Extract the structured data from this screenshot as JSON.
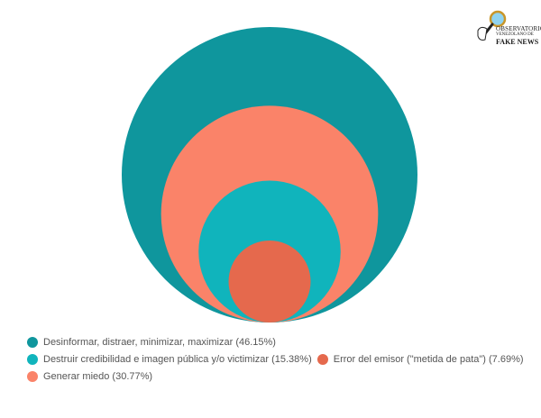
{
  "chart_data": {
    "type": "pie",
    "title": "",
    "series": [
      {
        "name": "Desinformar, distraer, minimizar, maximizar",
        "label": "Desinformar, distraer, minimizar, maximizar (46.15%)",
        "value": 46.15,
        "color": "#0f969d"
      },
      {
        "name": "Generar miedo",
        "label": "Generar miedo (30.77%)",
        "value": 30.77,
        "color": "#fa8369"
      },
      {
        "name": "Destruir credibilidad e imagen pública y/o victimizar",
        "label": "Destruir credibilidad e imagen pública y/o victimizar (15.38%)",
        "value": 15.38,
        "color": "#10b4bc"
      },
      {
        "name": "Error del emisor (\"metida de pata\")",
        "label": "Error del emisor (\"metida de pata\") (7.69%)",
        "value": 7.69,
        "color": "#e5694d"
      }
    ],
    "legend_position": "bottom-left"
  },
  "logo": {
    "line1": "OBSERVATORIO",
    "line2": "VENEZOLANO DE",
    "line3": "FAKE NEWS",
    "icon": "magnifier-icon"
  }
}
